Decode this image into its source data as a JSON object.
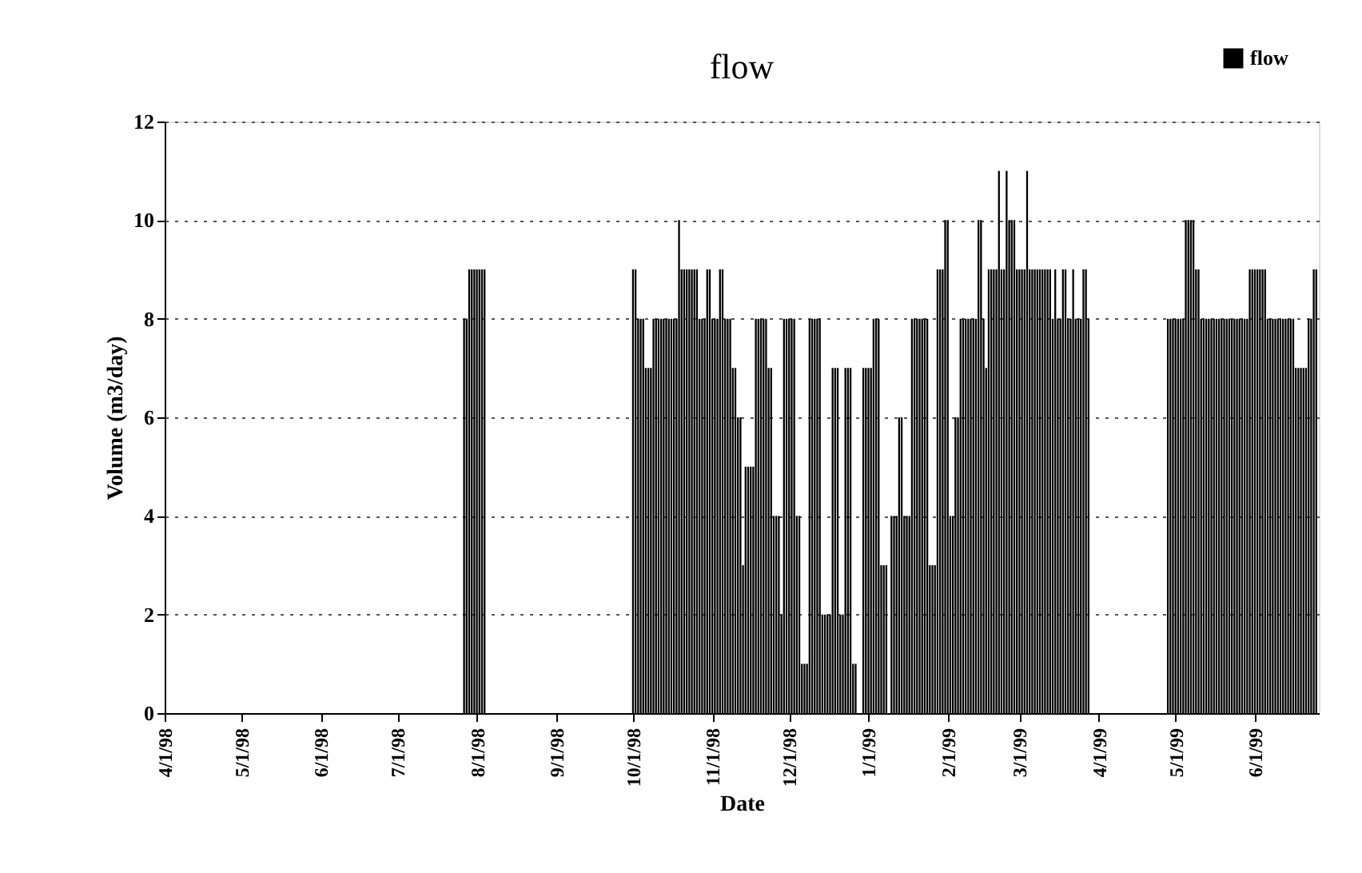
{
  "chart_data": {
    "type": "bar",
    "title": "flow",
    "xlabel": "Date",
    "ylabel": "Volume (m3/day)",
    "xlim": [
      "1998-04-01",
      "1999-06-26"
    ],
    "xticks": [
      {
        "value": "1998-04-01",
        "label": "4/1/98"
      },
      {
        "value": "1998-05-01",
        "label": "5/1/98"
      },
      {
        "value": "1998-06-01",
        "label": "6/1/98"
      },
      {
        "value": "1998-07-01",
        "label": "7/1/98"
      },
      {
        "value": "1998-08-01",
        "label": "8/1/98"
      },
      {
        "value": "1998-09-01",
        "label": "9/1/98"
      },
      {
        "value": "1998-10-01",
        "label": "10/1/98"
      },
      {
        "value": "1998-11-01",
        "label": "11/1/98"
      },
      {
        "value": "1998-12-01",
        "label": "12/1/98"
      },
      {
        "value": "1999-01-01",
        "label": "1/1/99"
      },
      {
        "value": "1999-02-01",
        "label": "2/1/99"
      },
      {
        "value": "1999-03-01",
        "label": "3/1/99"
      },
      {
        "value": "1999-04-01",
        "label": "4/1/99"
      },
      {
        "value": "1999-05-01",
        "label": "5/1/99"
      },
      {
        "value": "1999-06-01",
        "label": "6/1/99"
      }
    ],
    "ylim": [
      0,
      12
    ],
    "yticks": [
      0,
      2,
      4,
      6,
      8,
      10,
      12
    ],
    "grid": "y",
    "legend": "top right",
    "series": [
      {
        "name": "flow",
        "color": "#000000",
        "x": [
          "1998-07-27",
          "1998-07-28",
          "1998-07-29",
          "1998-07-30",
          "1998-07-31",
          "1998-08-01",
          "1998-08-02",
          "1998-08-03",
          "1998-08-04",
          "1998-10-01",
          "1998-10-02",
          "1998-10-03",
          "1998-10-04",
          "1998-10-05",
          "1998-10-06",
          "1998-10-07",
          "1998-10-08",
          "1998-10-09",
          "1998-10-10",
          "1998-10-11",
          "1998-10-12",
          "1998-10-13",
          "1998-10-14",
          "1998-10-15",
          "1998-10-16",
          "1998-10-17",
          "1998-10-18",
          "1998-10-19",
          "1998-10-20",
          "1998-10-21",
          "1998-10-22",
          "1998-10-23",
          "1998-10-24",
          "1998-10-25",
          "1998-10-26",
          "1998-10-27",
          "1998-10-28",
          "1998-10-29",
          "1998-10-30",
          "1998-10-31",
          "1998-11-01",
          "1998-11-02",
          "1998-11-03",
          "1998-11-04",
          "1998-11-05",
          "1998-11-06",
          "1998-11-07",
          "1998-11-08",
          "1998-11-09",
          "1998-11-10",
          "1998-11-11",
          "1998-11-12",
          "1998-11-13",
          "1998-11-14",
          "1998-11-15",
          "1998-11-16",
          "1998-11-17",
          "1998-11-18",
          "1998-11-19",
          "1998-11-20",
          "1998-11-21",
          "1998-11-22",
          "1998-11-23",
          "1998-11-24",
          "1998-11-25",
          "1998-11-26",
          "1998-11-27",
          "1998-11-28",
          "1998-11-29",
          "1998-11-30",
          "1998-12-01",
          "1998-12-02",
          "1998-12-03",
          "1998-12-04",
          "1998-12-05",
          "1998-12-06",
          "1998-12-07",
          "1998-12-08",
          "1998-12-09",
          "1998-12-10",
          "1998-12-11",
          "1998-12-12",
          "1998-12-13",
          "1998-12-14",
          "1998-12-15",
          "1998-12-16",
          "1998-12-17",
          "1998-12-18",
          "1998-12-19",
          "1998-12-20",
          "1998-12-21",
          "1998-12-22",
          "1998-12-23",
          "1998-12-24",
          "1998-12-25",
          "1998-12-26",
          "1998-12-27",
          "1998-12-28",
          "1998-12-29",
          "1998-12-30",
          "1998-12-31",
          "1999-01-01",
          "1999-01-02",
          "1999-01-03",
          "1999-01-04",
          "1999-01-05",
          "1999-01-06",
          "1999-01-07",
          "1999-01-08",
          "1999-01-09",
          "1999-01-10",
          "1999-01-11",
          "1999-01-12",
          "1999-01-13",
          "1999-01-14",
          "1999-01-15",
          "1999-01-16",
          "1999-01-17",
          "1999-01-18",
          "1999-01-19",
          "1999-01-20",
          "1999-01-21",
          "1999-01-22",
          "1999-01-23",
          "1999-01-24",
          "1999-01-25",
          "1999-01-26",
          "1999-01-27",
          "1999-01-28",
          "1999-01-29",
          "1999-01-30",
          "1999-01-31",
          "1999-02-01",
          "1999-02-02",
          "1999-02-03",
          "1999-02-04",
          "1999-02-05",
          "1999-02-06",
          "1999-02-07",
          "1999-02-08",
          "1999-02-09",
          "1999-02-10",
          "1999-02-11",
          "1999-02-12",
          "1999-02-13",
          "1999-02-14",
          "1999-02-15",
          "1999-02-16",
          "1999-02-17",
          "1999-02-18",
          "1999-02-19",
          "1999-02-20",
          "1999-02-21",
          "1999-02-22",
          "1999-02-23",
          "1999-02-24",
          "1999-02-25",
          "1999-02-26",
          "1999-02-27",
          "1999-02-28",
          "1999-03-01",
          "1999-03-02",
          "1999-03-03",
          "1999-03-04",
          "1999-03-05",
          "1999-03-06",
          "1999-03-07",
          "1999-03-08",
          "1999-03-09",
          "1999-03-10",
          "1999-03-11",
          "1999-03-12",
          "1999-03-13",
          "1999-03-14",
          "1999-03-15",
          "1999-03-16",
          "1999-03-17",
          "1999-03-18",
          "1999-03-19",
          "1999-03-20",
          "1999-03-21",
          "1999-03-22",
          "1999-03-23",
          "1999-03-24",
          "1999-03-25",
          "1999-03-26",
          "1999-03-27",
          "1999-03-28",
          "1999-04-28",
          "1999-04-29",
          "1999-04-30",
          "1999-05-01",
          "1999-05-02",
          "1999-05-03",
          "1999-05-04",
          "1999-05-05",
          "1999-05-06",
          "1999-05-07",
          "1999-05-08",
          "1999-05-09",
          "1999-05-10",
          "1999-05-11",
          "1999-05-12",
          "1999-05-13",
          "1999-05-14",
          "1999-05-15",
          "1999-05-16",
          "1999-05-17",
          "1999-05-18",
          "1999-05-19",
          "1999-05-20",
          "1999-05-21",
          "1999-05-22",
          "1999-05-23",
          "1999-05-24",
          "1999-05-25",
          "1999-05-26",
          "1999-05-27",
          "1999-05-28",
          "1999-05-29",
          "1999-05-30",
          "1999-05-31",
          "1999-06-01",
          "1999-06-02",
          "1999-06-03",
          "1999-06-04",
          "1999-06-05",
          "1999-06-06",
          "1999-06-07",
          "1999-06-08",
          "1999-06-09",
          "1999-06-10",
          "1999-06-11",
          "1999-06-12",
          "1999-06-13",
          "1999-06-14",
          "1999-06-15",
          "1999-06-16",
          "1999-06-17",
          "1999-06-18",
          "1999-06-19",
          "1999-06-20",
          "1999-06-21",
          "1999-06-22",
          "1999-06-23",
          "1999-06-24",
          "1999-06-25"
        ],
        "values": [
          8,
          8,
          9,
          9,
          9,
          9,
          9,
          9,
          9,
          9,
          9,
          8,
          8,
          8,
          7,
          7,
          7,
          8,
          8,
          8,
          8,
          8,
          8,
          8,
          8,
          8,
          8,
          10,
          9,
          9,
          9,
          9,
          9,
          9,
          9,
          8,
          8,
          8,
          9,
          9,
          8,
          8,
          8,
          9,
          9,
          8,
          8,
          8,
          7,
          7,
          6,
          6,
          3,
          5,
          5,
          5,
          5,
          8,
          8,
          8,
          8,
          8,
          7,
          7,
          4,
          4,
          4,
          2,
          8,
          8,
          8,
          8,
          8,
          4,
          4,
          1,
          1,
          1,
          8,
          8,
          8,
          8,
          8,
          2,
          2,
          2,
          2,
          7,
          7,
          7,
          2,
          2,
          7,
          7,
          7,
          1,
          1,
          0,
          0,
          7,
          7,
          7,
          7,
          8,
          8,
          8,
          3,
          3,
          3,
          0,
          4,
          4,
          4,
          6,
          6,
          4,
          4,
          4,
          8,
          8,
          8,
          8,
          8,
          8,
          8,
          3,
          3,
          3,
          9,
          9,
          9,
          10,
          10,
          4,
          4,
          6,
          6,
          8,
          8,
          8,
          8,
          8,
          8,
          8,
          10,
          10,
          8,
          7,
          9,
          9,
          9,
          9,
          11,
          9,
          9,
          11,
          10,
          10,
          10,
          9,
          9,
          9,
          9,
          11,
          9,
          9,
          9,
          9,
          9,
          9,
          9,
          9,
          9,
          8,
          9,
          8,
          8,
          9,
          9,
          8,
          8,
          9,
          8,
          8,
          8,
          9,
          9,
          8,
          8,
          8,
          8,
          8,
          8,
          8,
          8,
          10,
          10,
          10,
          10,
          9,
          9,
          8,
          8,
          8,
          8,
          8,
          8,
          8,
          8,
          8,
          8,
          8,
          8,
          8,
          8,
          8,
          8,
          8,
          8,
          8,
          9,
          9,
          9,
          9,
          9,
          9,
          9,
          8,
          8,
          8,
          8,
          8,
          8,
          8,
          8,
          8,
          8,
          8,
          7,
          7,
          7,
          7,
          7,
          8,
          8,
          9,
          9
        ]
      }
    ]
  }
}
